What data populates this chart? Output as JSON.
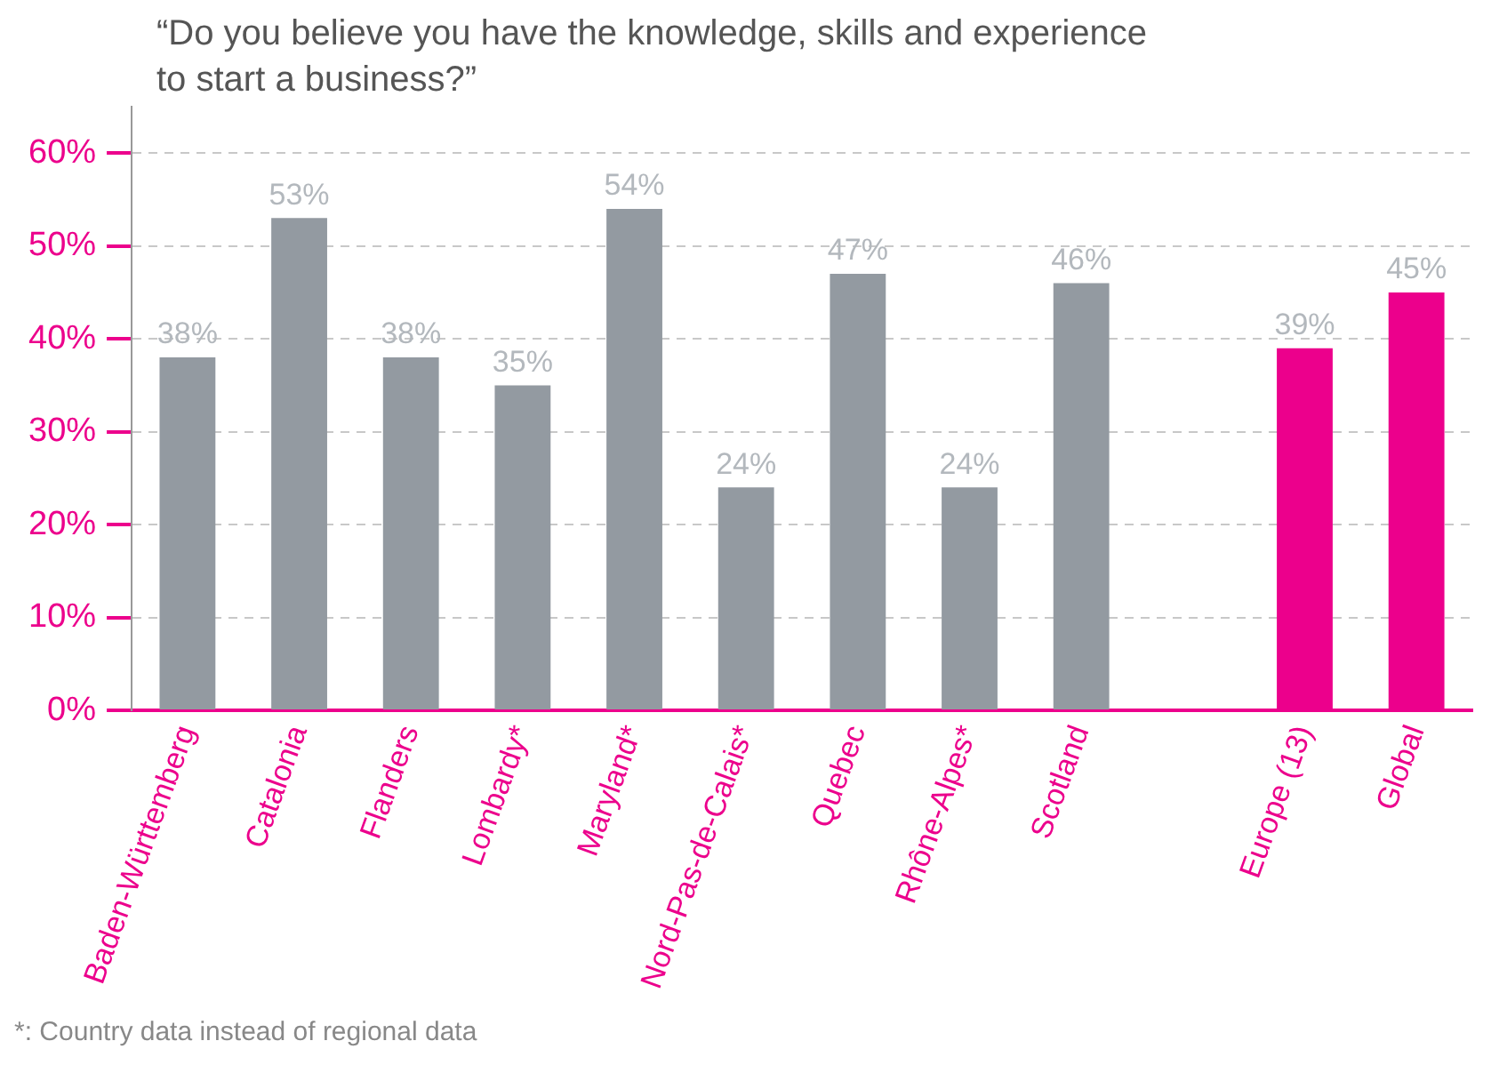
{
  "chart_data": {
    "type": "bar",
    "title": "“Do you believe you have the knowledge, skills and experience to start a business?”",
    "categories": [
      "Baden-Württemberg",
      "Catalonia",
      "Flanders",
      "Lombardy*",
      "Maryland*",
      "Nord-Pas-de-Calais*",
      "Quebec",
      "Rhône-Alpes*",
      "Scotland",
      null,
      "Europe (13)",
      "Global"
    ],
    "values": [
      38,
      53,
      38,
      35,
      54,
      24,
      47,
      24,
      46,
      null,
      39,
      45
    ],
    "colors": [
      "#939aa1",
      "#939aa1",
      "#939aa1",
      "#939aa1",
      "#939aa1",
      "#939aa1",
      "#939aa1",
      "#939aa1",
      "#939aa1",
      "#939aa1",
      "#ec008c",
      "#ec008c"
    ],
    "value_labels": [
      "38%",
      "53%",
      "38%",
      "35%",
      "54%",
      "24%",
      "47%",
      "24%",
      "46%",
      null,
      "39%",
      "45%"
    ],
    "ylim": [
      0,
      65
    ],
    "yticks": [
      {
        "value": 0,
        "label": "0%"
      },
      {
        "value": 10,
        "label": "10%"
      },
      {
        "value": 20,
        "label": "20%"
      },
      {
        "value": 30,
        "label": "30%"
      },
      {
        "value": 40,
        "label": "40%"
      },
      {
        "value": 50,
        "label": "50%"
      },
      {
        "value": 60,
        "label": "60%"
      }
    ],
    "grid": "y",
    "legend": false,
    "annotations": [
      "*: Country data instead of regional data"
    ]
  }
}
